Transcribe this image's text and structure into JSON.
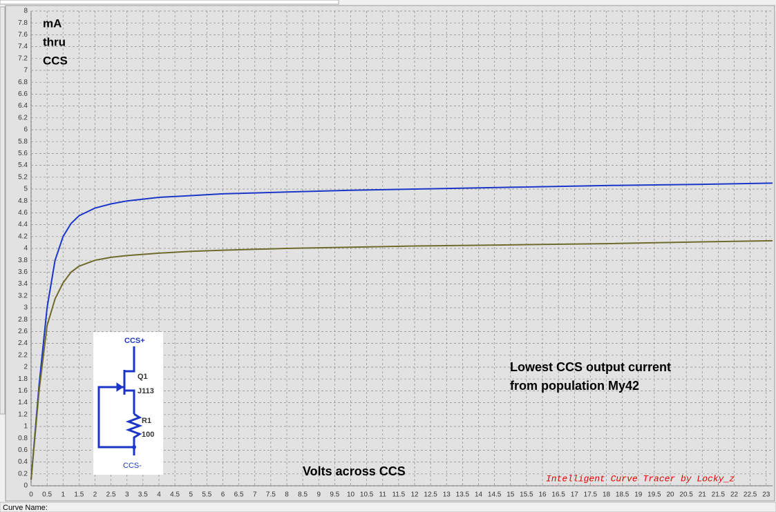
{
  "chart_data": {
    "type": "line",
    "y_label_lines": [
      "mA",
      "thru",
      "CCS"
    ],
    "x_label": "Volts across CCS",
    "annotation_lines": [
      "Lowest CCS output current",
      "from population My42"
    ],
    "watermark": "Intelligent Curve Tracer by Locky_z",
    "x": [
      0,
      0.25,
      0.5,
      0.75,
      1,
      1.25,
      1.5,
      2,
      2.5,
      3,
      4,
      5,
      6,
      8,
      10,
      12,
      15,
      18,
      21,
      23.2
    ],
    "series": [
      {
        "color": "#1a35c8",
        "values": [
          0.1,
          1.7,
          3.0,
          3.8,
          4.2,
          4.42,
          4.55,
          4.68,
          4.75,
          4.8,
          4.86,
          4.89,
          4.92,
          4.95,
          4.98,
          5.0,
          5.03,
          5.06,
          5.08,
          5.1
        ]
      },
      {
        "color": "#6e6a2c",
        "values": [
          0.1,
          1.6,
          2.7,
          3.15,
          3.42,
          3.6,
          3.7,
          3.8,
          3.85,
          3.88,
          3.92,
          3.95,
          3.97,
          4.0,
          4.02,
          4.04,
          4.06,
          4.08,
          4.11,
          4.13
        ]
      }
    ],
    "xlim": [
      0,
      23.2
    ],
    "ylim": [
      0,
      8
    ],
    "xticks": [
      0,
      0.5,
      1,
      1.5,
      2,
      2.5,
      3,
      3.5,
      4,
      4.5,
      5,
      5.5,
      6,
      6.5,
      7,
      7.5,
      8,
      8.5,
      9,
      9.5,
      10,
      10.5,
      11,
      11.5,
      12,
      12.5,
      13,
      13.5,
      14,
      14.5,
      15,
      15.5,
      16,
      16.5,
      17,
      17.5,
      18,
      18.5,
      19,
      19.5,
      20,
      20.5,
      21,
      21.5,
      22,
      22.5,
      23
    ],
    "yticks": [
      0,
      0.2,
      0.4,
      0.6,
      0.8,
      1,
      1.2,
      1.4,
      1.6,
      1.8,
      2,
      2.2,
      2.4,
      2.6,
      2.8,
      3,
      3.2,
      3.4,
      3.6,
      3.8,
      4,
      4.2,
      4.4,
      4.6,
      4.8,
      5,
      5.2,
      5.4,
      5.6,
      5.8,
      6,
      6.2,
      6.4,
      6.6,
      6.8,
      7,
      7.2,
      7.4,
      7.6,
      7.8,
      8
    ],
    "grid": true
  },
  "schematic": {
    "top": "CCS+",
    "transistor": "Q1",
    "part": "J113",
    "resistor": "R1",
    "resistance": "100",
    "bottom": "CCS-"
  },
  "status_bar": {
    "label": "Curve Name:"
  }
}
